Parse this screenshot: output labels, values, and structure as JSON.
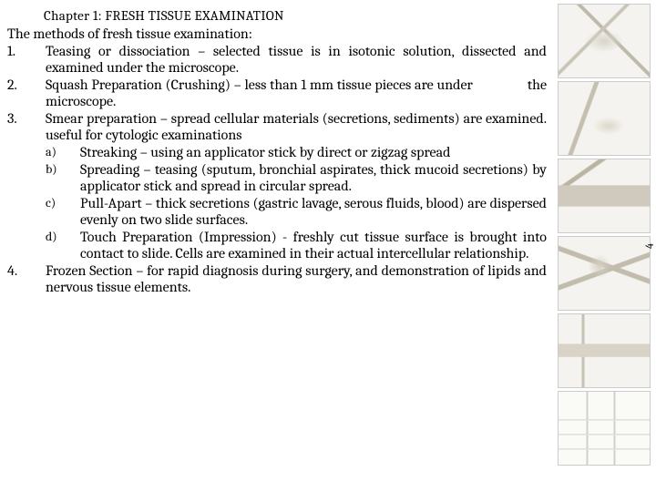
{
  "chapter_title": "Chapter 1: FRESH TISSUE EXAMINATION",
  "intro": "The methods of fresh tissue examination:",
  "page_number": "4",
  "items": [
    {
      "num": "1.",
      "text": "Teasing or dissociation – selected tissue is in isotonic solution, dissected and examined under the microscope."
    },
    {
      "num": "2.",
      "text": "Squash Preparation (Crushing) – less than 1 mm tissue pieces are under                the microscope."
    },
    {
      "num": "3.",
      "text": "Smear preparation – spread cellular materials (secretions, sediments) are examined. useful for cytologic examinations",
      "sub": [
        {
          "num": "a)",
          "text": "Streaking – using an applicator stick by direct or zigzag spread"
        },
        {
          "num": "b)",
          "text": "Spreading – teasing (sputum, bronchial aspirates, thick mucoid secretions) by applicator stick and spread in circular spread."
        },
        {
          "num": "c)",
          "text": "Pull-Apart – thick secretions (gastric lavage, serous fluids, blood) are dispersed evenly on two slide surfaces."
        },
        {
          "num": "d)",
          "text": "Touch Preparation (Impression) - freshly cut tissue surface is brought into contact to slide. Cells are examined in their actual intercellular relationship."
        }
      ]
    },
    {
      "num": "4.",
      "text": "Frozen Section – for rapid diagnosis during surgery, and demonstration of lipids and nervous tissue elements."
    }
  ],
  "thumbs": [
    "t1",
    "t2",
    "t3",
    "t4",
    "t5",
    "t6"
  ]
}
